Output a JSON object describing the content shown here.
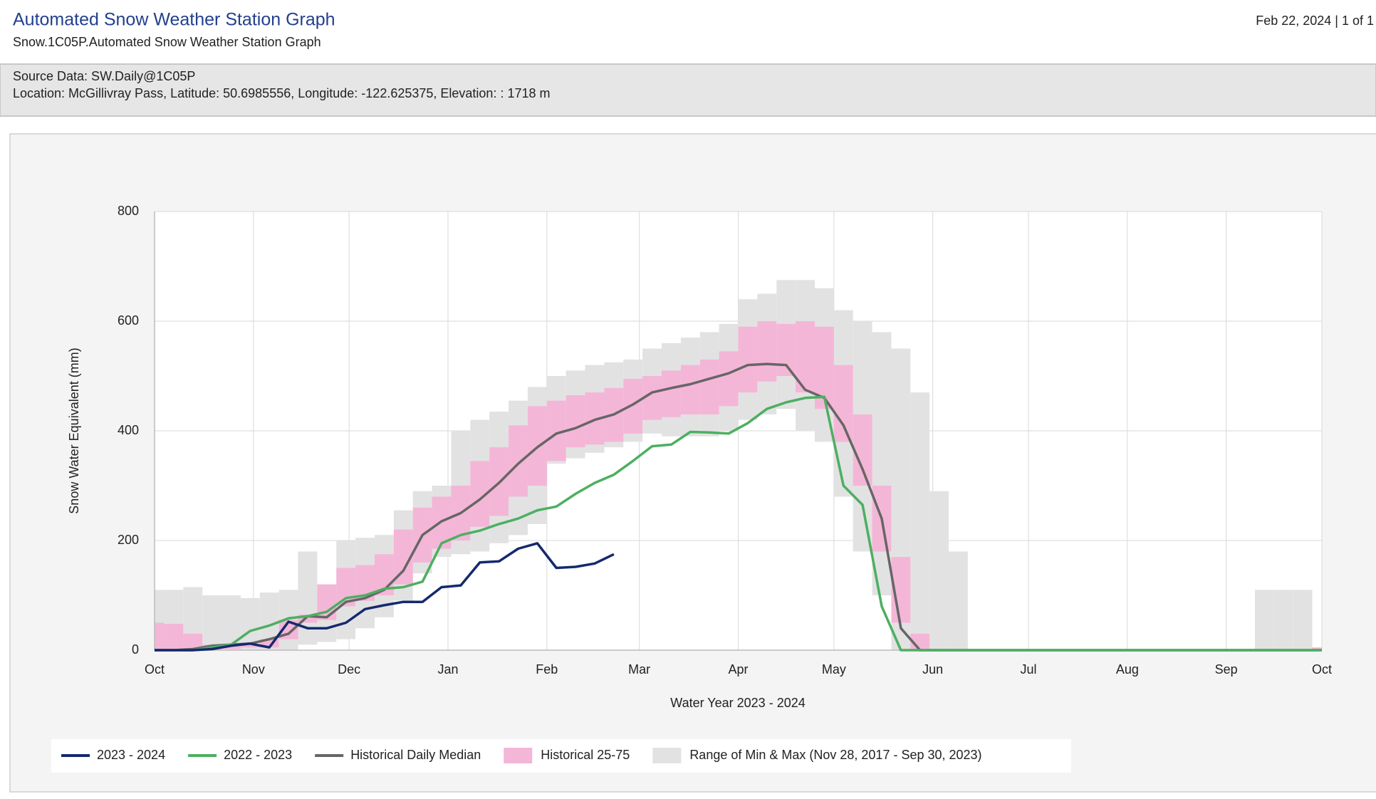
{
  "header": {
    "title": "Automated Snow Weather Station Graph",
    "subtitle": "Snow.1C05P.Automated Snow Weather Station Graph",
    "page_info": "Feb 22, 2024 | 1 of 1"
  },
  "info": {
    "source": "Source Data: SW.Daily@1C05P",
    "location": "Location: McGillivray Pass, Latitude: 50.6985556, Longitude: -122.625375, Elevation: : 1718 m"
  },
  "chart_data": {
    "type": "line",
    "x_label": "Water Year 2023 - 2024",
    "y_label": "Snow Water Equivalent (mm)",
    "xlim": [
      0,
      366
    ],
    "xticks": [
      {
        "value": 0,
        "label": "Oct"
      },
      {
        "value": 31,
        "label": "Nov"
      },
      {
        "value": 61,
        "label": "Dec"
      },
      {
        "value": 92,
        "label": "Jan"
      },
      {
        "value": 123,
        "label": "Feb"
      },
      {
        "value": 152,
        "label": "Mar"
      },
      {
        "value": 183,
        "label": "Apr"
      },
      {
        "value": 213,
        "label": "May"
      },
      {
        "value": 244,
        "label": "Jun"
      },
      {
        "value": 274,
        "label": "Jul"
      },
      {
        "value": 305,
        "label": "Aug"
      },
      {
        "value": 336,
        "label": "Sep"
      },
      {
        "value": 366,
        "label": "Oct"
      }
    ],
    "ylim": [
      0,
      800
    ],
    "yticks": [
      0,
      200,
      400,
      600,
      800
    ],
    "grid": true,
    "x": [
      0,
      6,
      12,
      18,
      24,
      30,
      36,
      42,
      48,
      54,
      60,
      66,
      72,
      78,
      84,
      90,
      96,
      102,
      108,
      114,
      120,
      126,
      132,
      138,
      144,
      150,
      156,
      162,
      168,
      174,
      180,
      186,
      192,
      198,
      204,
      210,
      216,
      222,
      228,
      234,
      240,
      246,
      252,
      258,
      264,
      270,
      276,
      282,
      288,
      294,
      300,
      306,
      312,
      318,
      324,
      330,
      336,
      342,
      348,
      354,
      360,
      366
    ],
    "bands": [
      {
        "name": "Range of Min & Max (Nov 28, 2017 - Sep 30, 2023)",
        "color": "#e2e2e2",
        "low": [
          0,
          0,
          0,
          0,
          0,
          0,
          0,
          0,
          10,
          15,
          20,
          40,
          60,
          90,
          140,
          170,
          175,
          180,
          195,
          210,
          230,
          340,
          350,
          360,
          370,
          380,
          395,
          390,
          390,
          390,
          400,
          420,
          430,
          440,
          400,
          380,
          280,
          180,
          100,
          0,
          0,
          0,
          0,
          0,
          0,
          0,
          0,
          0,
          0,
          0,
          0,
          0,
          0,
          0,
          0,
          0,
          0,
          0,
          0,
          0,
          0,
          0
        ],
        "high": [
          110,
          110,
          115,
          100,
          100,
          95,
          105,
          110,
          180,
          120,
          200,
          205,
          210,
          255,
          290,
          300,
          400,
          420,
          435,
          455,
          480,
          500,
          510,
          520,
          525,
          530,
          550,
          560,
          570,
          580,
          595,
          640,
          650,
          675,
          675,
          660,
          620,
          600,
          580,
          550,
          470,
          290,
          180,
          0,
          0,
          0,
          0,
          0,
          0,
          0,
          0,
          0,
          0,
          0,
          0,
          0,
          0,
          0,
          110,
          110,
          110,
          0
        ]
      },
      {
        "name": "Historical 25-75",
        "color": "#f4b6d7",
        "low": [
          0,
          0,
          0,
          0,
          2,
          5,
          5,
          20,
          50,
          55,
          80,
          90,
          100,
          120,
          160,
          185,
          200,
          225,
          245,
          280,
          300,
          345,
          370,
          375,
          380,
          395,
          420,
          425,
          430,
          430,
          445,
          470,
          490,
          500,
          470,
          440,
          380,
          300,
          180,
          50,
          0,
          0,
          0,
          0,
          0,
          0,
          0,
          0,
          0,
          0,
          0,
          0,
          0,
          0,
          0,
          0,
          0,
          0,
          0,
          0,
          0,
          0
        ],
        "high": [
          50,
          48,
          30,
          10,
          8,
          10,
          20,
          55,
          65,
          120,
          150,
          155,
          175,
          220,
          260,
          280,
          300,
          345,
          370,
          410,
          445,
          455,
          465,
          470,
          478,
          495,
          500,
          510,
          520,
          530,
          545,
          590,
          600,
          595,
          600,
          590,
          520,
          430,
          300,
          170,
          30,
          0,
          0,
          0,
          0,
          0,
          0,
          0,
          0,
          0,
          0,
          0,
          0,
          0,
          0,
          0,
          0,
          0,
          0,
          0,
          0,
          5
        ]
      }
    ],
    "series": [
      {
        "name": "2023 - 2024",
        "color": "#14296e",
        "values": [
          0,
          0,
          0,
          2,
          8,
          12,
          5,
          52,
          40,
          40,
          50,
          75,
          82,
          88,
          88,
          115,
          118,
          160,
          162,
          185,
          195,
          150,
          152,
          158,
          175,
          null,
          null,
          null,
          null,
          null,
          null,
          null,
          null,
          null,
          null,
          null,
          null,
          null,
          null,
          null,
          null,
          null,
          null,
          null,
          null,
          null,
          null,
          null,
          null,
          null,
          null,
          null,
          null,
          null,
          null,
          null,
          null,
          null,
          null,
          null,
          null,
          null
        ]
      },
      {
        "name": "2022 - 2023",
        "color": "#4caf62",
        "values": [
          0,
          0,
          0,
          5,
          10,
          35,
          45,
          58,
          62,
          70,
          95,
          100,
          112,
          115,
          125,
          195,
          210,
          218,
          230,
          240,
          255,
          262,
          285,
          305,
          320,
          345,
          372,
          375,
          398,
          397,
          395,
          414,
          440,
          452,
          460,
          462,
          300,
          265,
          80,
          0,
          0,
          0,
          0,
          0,
          0,
          0,
          0,
          0,
          0,
          0,
          0,
          0,
          0,
          0,
          0,
          0,
          0,
          0,
          0,
          0,
          0,
          0
        ]
      },
      {
        "name": "Historical Daily Median",
        "color": "#666666",
        "values": [
          0,
          0,
          2,
          8,
          10,
          12,
          20,
          30,
          62,
          60,
          88,
          95,
          110,
          145,
          210,
          235,
          250,
          275,
          305,
          340,
          370,
          395,
          405,
          420,
          430,
          448,
          470,
          478,
          485,
          495,
          505,
          520,
          522,
          520,
          475,
          460,
          410,
          330,
          240,
          40,
          0,
          0,
          0,
          0,
          0,
          0,
          0,
          0,
          0,
          0,
          0,
          0,
          0,
          0,
          0,
          0,
          0,
          0,
          0,
          0,
          0,
          0
        ]
      }
    ]
  }
}
